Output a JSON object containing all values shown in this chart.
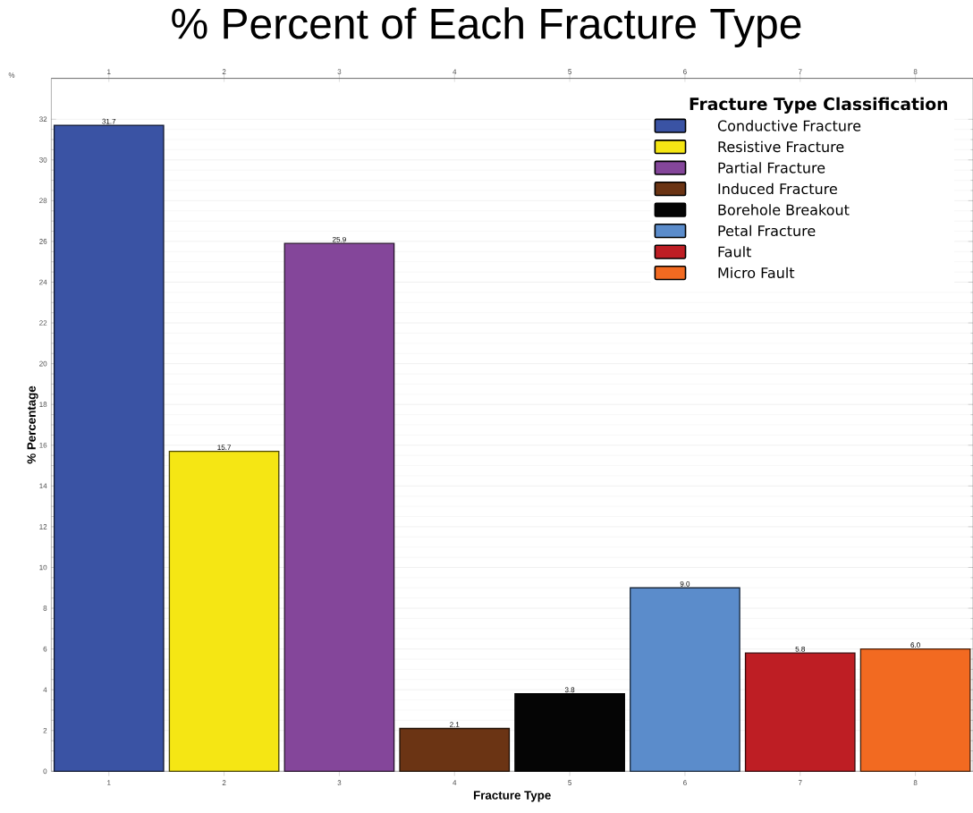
{
  "chart_data": {
    "type": "bar",
    "title": "% Percent of Each Fracture Type",
    "xlabel": "Fracture Type",
    "ylabel": "% Percentage",
    "legend_title": "Fracture Type Classification",
    "annotations": [
      "%"
    ],
    "categories": [
      "1",
      "2",
      "3",
      "4",
      "5",
      "6",
      "7",
      "8"
    ],
    "series": [
      {
        "name": "Conductive Fracture",
        "color": "#3a53a4",
        "values": [
          31.7,
          null,
          null,
          null,
          null,
          null,
          null,
          null
        ],
        "value_labels": [
          "31.7",
          null,
          null,
          null,
          null,
          null,
          null,
          null
        ]
      },
      {
        "name": "Resistive Fracture",
        "color": "#f5e614",
        "values": [
          null,
          15.7,
          null,
          null,
          null,
          null,
          null,
          null
        ],
        "value_labels": [
          null,
          "15.7",
          null,
          null,
          null,
          null,
          null,
          null
        ]
      },
      {
        "name": "Partial Fracture",
        "color": "#84469a",
        "values": [
          null,
          null,
          25.9,
          null,
          null,
          null,
          null,
          null
        ],
        "value_labels": [
          null,
          null,
          "25.9",
          null,
          null,
          null,
          null,
          null
        ]
      },
      {
        "name": "Induced Fracture",
        "color": "#6b3414",
        "values": [
          null,
          null,
          null,
          2.1,
          null,
          null,
          null,
          null
        ],
        "value_labels": [
          null,
          null,
          null,
          "2.1",
          null,
          null,
          null,
          null
        ]
      },
      {
        "name": "Borehole Breakout",
        "color": "#050505",
        "values": [
          null,
          null,
          null,
          null,
          3.8,
          null,
          null,
          null
        ],
        "value_labels": [
          null,
          null,
          null,
          null,
          "3.8",
          null,
          null,
          null
        ]
      },
      {
        "name": "Petal Fracture",
        "color": "#5b8ccb",
        "values": [
          null,
          null,
          null,
          null,
          null,
          9.0,
          null,
          null
        ],
        "value_labels": [
          null,
          null,
          null,
          null,
          null,
          "9.0",
          null,
          null
        ]
      },
      {
        "name": "Fault",
        "color": "#be1e24",
        "values": [
          null,
          null,
          null,
          null,
          null,
          null,
          5.8,
          null
        ],
        "value_labels": [
          null,
          null,
          null,
          null,
          null,
          null,
          "5.8",
          null
        ]
      },
      {
        "name": "Micro Fault",
        "color": "#f26a21",
        "values": [
          null,
          null,
          null,
          null,
          null,
          null,
          null,
          6.0
        ],
        "value_labels": [
          null,
          null,
          null,
          null,
          null,
          null,
          null,
          "6.0"
        ]
      }
    ],
    "ylim": [
      0,
      34
    ],
    "yticks": [
      0,
      2,
      4,
      6,
      8,
      10,
      12,
      14,
      16,
      18,
      20,
      22,
      24,
      26,
      28,
      30,
      32
    ],
    "grid": "y",
    "legend": "top right"
  }
}
